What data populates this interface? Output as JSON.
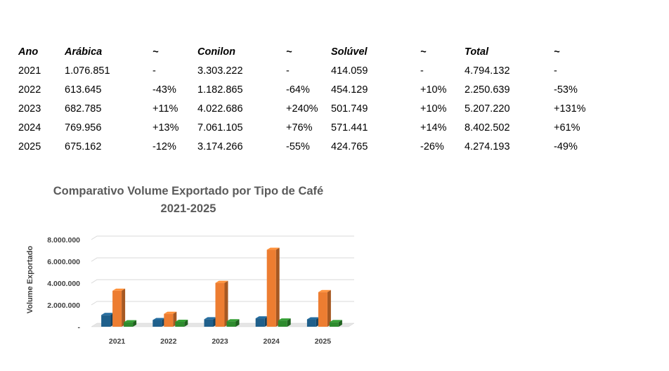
{
  "table": {
    "headers": [
      "Ano",
      "Arábica",
      "~",
      "Conilon",
      "~",
      "Solúvel",
      "~",
      "Total",
      "~"
    ],
    "rows": [
      [
        "2021",
        "1.076.851",
        "-",
        "3.303.222",
        "-",
        "414.059",
        "-",
        "4.794.132",
        "-"
      ],
      [
        "2022",
        "613.645",
        "-43%",
        "1.182.865",
        "-64%",
        "454.129",
        "+10%",
        "2.250.639",
        "-53%"
      ],
      [
        "2023",
        "682.785",
        "+11%",
        "4.022.686",
        "+240%",
        "501.749",
        "+10%",
        "5.207.220",
        "+131%"
      ],
      [
        "2024",
        "769.956",
        "+13%",
        "7.061.105",
        "+76%",
        "571.441",
        "+14%",
        "8.402.502",
        "+61%"
      ],
      [
        "2025",
        "675.162",
        "-12%",
        "3.174.266",
        "-55%",
        "424.765",
        "-26%",
        "4.274.193",
        "-49%"
      ]
    ]
  },
  "chart_data": {
    "type": "bar",
    "title": [
      "Comparativo Volume Exportado por Tipo de Café",
      "2021-2025"
    ],
    "xlabel": "",
    "ylabel": "Volume Exportado",
    "categories": [
      "2021",
      "2022",
      "2023",
      "2024",
      "2025"
    ],
    "series": [
      {
        "values": [
          1076851,
          613645,
          682785,
          769956,
          675162
        ],
        "color": "#1f5f8b"
      },
      {
        "values": [
          3303222,
          1182865,
          4022686,
          7061105,
          3174266
        ],
        "color": "#ed7d31"
      },
      {
        "values": [
          414059,
          454129,
          501749,
          571441,
          424765
        ],
        "color": "#2e8b2e"
      }
    ],
    "ylim": [
      0,
      8000000
    ],
    "yticks": [
      0,
      2000000,
      4000000,
      6000000,
      8000000
    ],
    "ytick_labels": [
      "-",
      "2.000.000",
      "4.000.000",
      "6.000.000",
      "8.000.000"
    ],
    "grid": true,
    "legend": "none",
    "style": "3d-column"
  }
}
